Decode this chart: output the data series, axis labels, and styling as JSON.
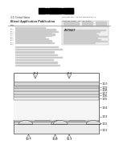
{
  "bg_color": "#ffffff",
  "diagram_area": [
    0.03,
    0.0,
    0.94,
    0.54
  ],
  "header_area": [
    0.0,
    0.54,
    1.0,
    0.46
  ],
  "labels_right": [
    [
      "110",
      0.96
    ],
    [
      "109",
      0.89
    ],
    [
      "108",
      0.82
    ],
    [
      "107",
      0.76
    ],
    [
      "106",
      0.69
    ],
    [
      "105",
      0.62
    ],
    [
      "104",
      0.54
    ],
    [
      "103",
      0.44
    ],
    [
      "102",
      0.3
    ],
    [
      "101",
      0.1
    ]
  ],
  "labels_bottom": [
    [
      "107",
      0.18
    ],
    [
      "108",
      0.48
    ],
    [
      "113",
      0.65
    ]
  ],
  "labels_top": [
    [
      "114",
      0.28
    ],
    [
      "112",
      0.52
    ]
  ],
  "layer_fills": {
    "substrate": "#e8e8e8",
    "well": "#d8d8d8",
    "oxide": "#f0f0f0",
    "poly": "#c8c8c8",
    "ild1": "#eeeeee",
    "ild2": "#e4e4e4",
    "ild3": "#dcdcdc",
    "metal": "#d0d0d0",
    "contact_hatch": "#cccccc",
    "spacer": "#e0e0e0",
    "silicide": "#b8b8b8"
  },
  "text_color": "#333333",
  "line_color": "#555555",
  "header_bg": "#f8f8f8"
}
